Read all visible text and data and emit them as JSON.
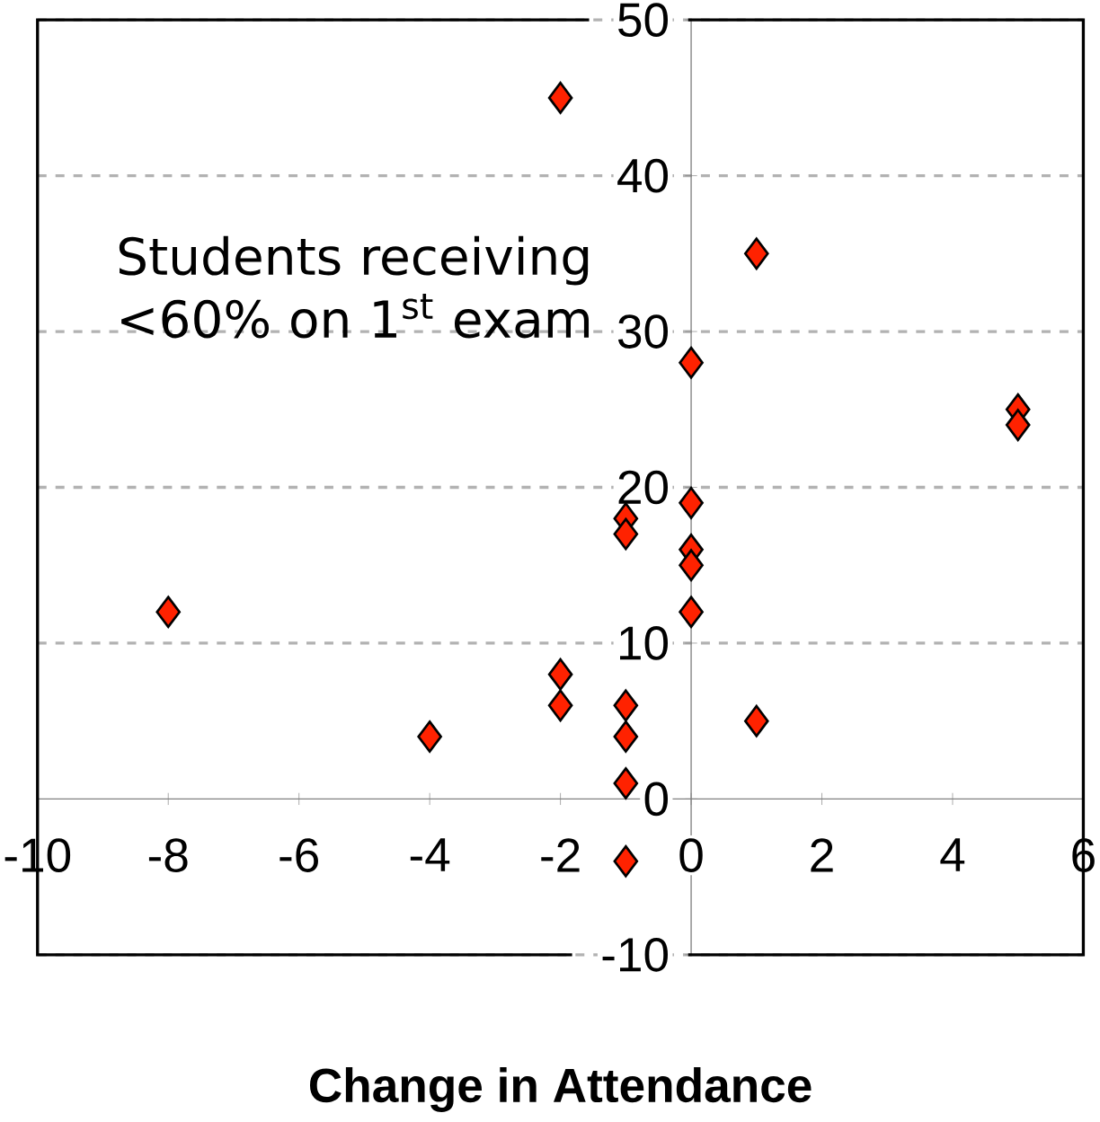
{
  "chart_data": {
    "type": "scatter",
    "xlabel": "Change in Attendance",
    "annotations": [
      "Students receiving <60% on 1$^{st}$ exam"
    ],
    "x": [
      -2,
      1,
      0,
      5,
      5,
      0,
      -1,
      -1,
      0,
      0,
      0,
      -8,
      -2,
      -2,
      -1,
      1,
      -4,
      -1,
      -1,
      -1
    ],
    "values": [
      45,
      35,
      28,
      25,
      24,
      19,
      18,
      17,
      16,
      15,
      12,
      12,
      8,
      6,
      6,
      5,
      4,
      4,
      1,
      -4
    ],
    "color": "#ff2200",
    "marker": "diamond",
    "grid": "y",
    "xlim": [
      -10,
      6
    ],
    "ylim": [
      -10,
      50
    ],
    "xticks": [
      -10,
      -8,
      -6,
      -4,
      -2,
      0,
      2,
      4,
      6
    ],
    "yticks": [
      -10,
      0,
      10,
      20,
      30,
      40,
      50
    ]
  }
}
